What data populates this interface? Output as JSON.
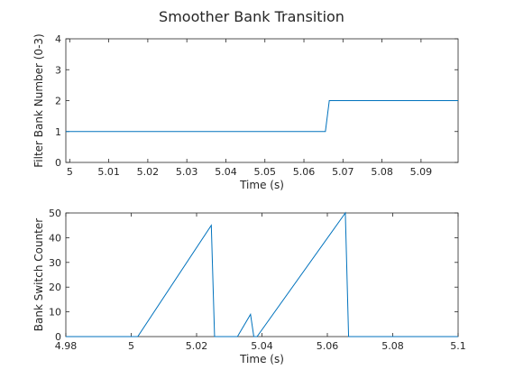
{
  "figure": {
    "title": "Smoother Bank Transition"
  },
  "colors": {
    "series": "#0072BD",
    "axis": "#262626",
    "background": "#ffffff"
  },
  "chart_data": [
    {
      "type": "line",
      "title": "Smoother Bank Transition",
      "xlabel": "Time (s)",
      "ylabel": "Filter Bank Number (0-3)",
      "xlim": [
        4.999,
        5.0995
      ],
      "ylim": [
        0,
        4
      ],
      "xticks": [
        5,
        5.01,
        5.02,
        5.03,
        5.04,
        5.05,
        5.06,
        5.07,
        5.08,
        5.09
      ],
      "xticklabels": [
        "5",
        "5.01",
        "5.02",
        "5.03",
        "5.04",
        "5.05",
        "5.06",
        "5.07",
        "5.08",
        "5.09"
      ],
      "yticks": [
        0,
        1,
        2,
        3,
        4
      ],
      "yticklabels": [
        "0",
        "1",
        "2",
        "3",
        "4"
      ],
      "grid": false,
      "series": [
        {
          "x": [
            4.999,
            5.0655,
            5.0665,
            5.0995
          ],
          "y": [
            1,
            1,
            2,
            2
          ]
        }
      ]
    },
    {
      "type": "line",
      "xlabel": "Time (s)",
      "ylabel": "Bank Switch Counter",
      "xlim": [
        4.98,
        5.1
      ],
      "ylim": [
        0,
        50
      ],
      "xticks": [
        4.98,
        5,
        5.02,
        5.04,
        5.06,
        5.08,
        5.1
      ],
      "xticklabels": [
        "4.98",
        "5",
        "5.02",
        "5.04",
        "5.06",
        "5.08",
        "5.1"
      ],
      "yticks": [
        0,
        10,
        20,
        30,
        40,
        50
      ],
      "yticklabels": [
        "0",
        "10",
        "20",
        "30",
        "40",
        "50"
      ],
      "grid": false,
      "series": [
        {
          "x": [
            4.98,
            5.002,
            5.0245,
            5.0255,
            5.0325,
            5.0365,
            5.0375,
            5.0385,
            5.0655,
            5.0665,
            5.1
          ],
          "y": [
            0,
            0,
            45,
            0,
            0,
            9,
            0,
            0,
            50,
            0,
            0
          ]
        }
      ]
    }
  ]
}
